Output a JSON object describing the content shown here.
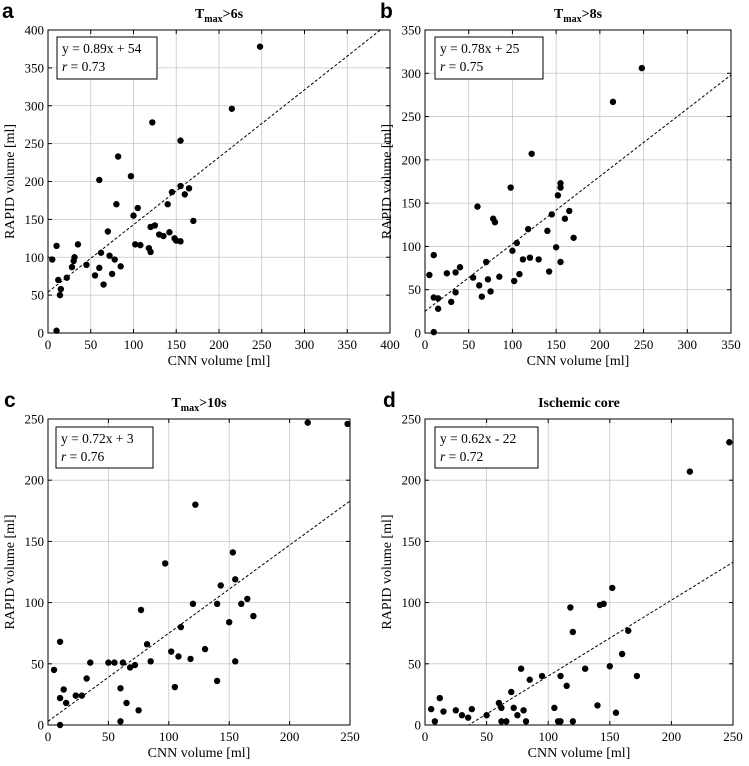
{
  "chart_data": [
    {
      "panel": "a",
      "type": "scatter",
      "title_main": "T",
      "title_sub": "max",
      "title_rest": ">6s",
      "xlabel": "CNN volume [ml]",
      "ylabel": "RAPID volume [ml]",
      "xlim": [
        0,
        400
      ],
      "ylim": [
        0,
        400
      ],
      "xticks": [
        0,
        50,
        100,
        150,
        200,
        250,
        300,
        350,
        400
      ],
      "yticks": [
        0,
        50,
        100,
        150,
        200,
        250,
        300,
        350,
        400
      ],
      "grid": true,
      "fit": {
        "slope": 0.89,
        "intercept": 54
      },
      "annotation": {
        "equation": "y = 0.89x + 54",
        "r_label": "r",
        "r_value": " = 0.73"
      },
      "points": [
        [
          5,
          97
        ],
        [
          10,
          115
        ],
        [
          10,
          3
        ],
        [
          12,
          70
        ],
        [
          14,
          50
        ],
        [
          15,
          58
        ],
        [
          22,
          73
        ],
        [
          28,
          87
        ],
        [
          30,
          95
        ],
        [
          31,
          100
        ],
        [
          35,
          117
        ],
        [
          45,
          90
        ],
        [
          55,
          76
        ],
        [
          60,
          86
        ],
        [
          60,
          202
        ],
        [
          62,
          106
        ],
        [
          65,
          64
        ],
        [
          70,
          134
        ],
        [
          72,
          102
        ],
        [
          75,
          78
        ],
        [
          78,
          97
        ],
        [
          80,
          170
        ],
        [
          82,
          233
        ],
        [
          85,
          88
        ],
        [
          97,
          207
        ],
        [
          100,
          155
        ],
        [
          102,
          117
        ],
        [
          105,
          165
        ],
        [
          108,
          116
        ],
        [
          118,
          112
        ],
        [
          120,
          107
        ],
        [
          120,
          140
        ],
        [
          122,
          278
        ],
        [
          125,
          142
        ],
        [
          130,
          130
        ],
        [
          135,
          128
        ],
        [
          140,
          170
        ],
        [
          142,
          133
        ],
        [
          145,
          186
        ],
        [
          148,
          125
        ],
        [
          150,
          122
        ],
        [
          155,
          194
        ],
        [
          155,
          121
        ],
        [
          155,
          254
        ],
        [
          160,
          183
        ],
        [
          165,
          191
        ],
        [
          170,
          148
        ],
        [
          215,
          296
        ],
        [
          248,
          378
        ]
      ]
    },
    {
      "panel": "b",
      "type": "scatter",
      "title_main": "T",
      "title_sub": "max",
      "title_rest": ">8s",
      "xlabel": "CNN volume [ml]",
      "ylabel": "RAPID volume [ml]",
      "xlim": [
        0,
        350
      ],
      "ylim": [
        0,
        350
      ],
      "xticks": [
        0,
        50,
        100,
        150,
        200,
        250,
        300,
        350
      ],
      "yticks": [
        0,
        50,
        100,
        150,
        200,
        250,
        300,
        350
      ],
      "grid": true,
      "fit": {
        "slope": 0.78,
        "intercept": 25
      },
      "annotation": {
        "equation": "y = 0.78x + 25",
        "r_label": "r",
        "r_value": " = 0.75"
      },
      "points": [
        [
          5,
          67
        ],
        [
          10,
          90
        ],
        [
          10,
          41
        ],
        [
          10,
          1
        ],
        [
          15,
          40
        ],
        [
          15,
          28
        ],
        [
          25,
          69
        ],
        [
          30,
          36
        ],
        [
          35,
          47
        ],
        [
          35,
          70
        ],
        [
          40,
          76
        ],
        [
          55,
          64
        ],
        [
          60,
          146
        ],
        [
          62,
          55
        ],
        [
          65,
          42
        ],
        [
          70,
          82
        ],
        [
          72,
          62
        ],
        [
          75,
          48
        ],
        [
          78,
          132
        ],
        [
          80,
          128
        ],
        [
          85,
          65
        ],
        [
          98,
          168
        ],
        [
          100,
          95
        ],
        [
          102,
          60
        ],
        [
          105,
          104
        ],
        [
          108,
          68
        ],
        [
          112,
          85
        ],
        [
          118,
          120
        ],
        [
          120,
          87
        ],
        [
          122,
          207
        ],
        [
          130,
          85
        ],
        [
          140,
          118
        ],
        [
          142,
          71
        ],
        [
          145,
          137
        ],
        [
          150,
          99
        ],
        [
          152,
          159
        ],
        [
          155,
          82
        ],
        [
          155,
          168
        ],
        [
          155,
          173
        ],
        [
          160,
          132
        ],
        [
          165,
          141
        ],
        [
          170,
          110
        ],
        [
          215,
          267
        ],
        [
          248,
          306
        ]
      ]
    },
    {
      "panel": "c",
      "type": "scatter",
      "title_main": "T",
      "title_sub": "max",
      "title_rest": ">10s",
      "xlabel": "CNN volume [ml]",
      "ylabel": "RAPID volume [ml]",
      "xlim": [
        0,
        250
      ],
      "ylim": [
        0,
        250
      ],
      "xticks": [
        0,
        50,
        100,
        150,
        200,
        250
      ],
      "yticks": [
        0,
        50,
        100,
        150,
        200,
        250
      ],
      "grid": true,
      "fit": {
        "slope": 0.72,
        "intercept": 3
      },
      "annotation": {
        "equation": "y = 0.72x + 3",
        "r_label": "r",
        "r_value": " = 0.76"
      },
      "points": [
        [
          5,
          45
        ],
        [
          10,
          68
        ],
        [
          10,
          22
        ],
        [
          10,
          0
        ],
        [
          13,
          29
        ],
        [
          15,
          18
        ],
        [
          23,
          24
        ],
        [
          28,
          24
        ],
        [
          32,
          38
        ],
        [
          35,
          51
        ],
        [
          50,
          51
        ],
        [
          55,
          51
        ],
        [
          60,
          30
        ],
        [
          60,
          3
        ],
        [
          62,
          51
        ],
        [
          65,
          18
        ],
        [
          68,
          47
        ],
        [
          72,
          49
        ],
        [
          75,
          12
        ],
        [
          77,
          94
        ],
        [
          82,
          66
        ],
        [
          85,
          52
        ],
        [
          97,
          132
        ],
        [
          102,
          60
        ],
        [
          105,
          31
        ],
        [
          108,
          56
        ],
        [
          110,
          80
        ],
        [
          118,
          54
        ],
        [
          120,
          99
        ],
        [
          122,
          180
        ],
        [
          130,
          62
        ],
        [
          140,
          36
        ],
        [
          140,
          99
        ],
        [
          143,
          114
        ],
        [
          150,
          84
        ],
        [
          153,
          141
        ],
        [
          155,
          119
        ],
        [
          155,
          52
        ],
        [
          160,
          99
        ],
        [
          165,
          103
        ],
        [
          170,
          89
        ],
        [
          215,
          247
        ],
        [
          248,
          246
        ]
      ]
    },
    {
      "panel": "d",
      "type": "scatter",
      "title_main": "Ischemic core",
      "title_sub": "",
      "title_rest": "",
      "xlabel": "CNN volume [ml]",
      "ylabel": "RAPID volume [ml]",
      "xlim": [
        0,
        250
      ],
      "ylim": [
        0,
        250
      ],
      "xticks": [
        0,
        50,
        100,
        150,
        200,
        250
      ],
      "yticks": [
        0,
        50,
        100,
        150,
        200,
        250
      ],
      "grid": true,
      "fit": {
        "slope": 0.62,
        "intercept": -22
      },
      "annotation": {
        "equation": "y = 0.62x - 22",
        "r_label": "r",
        "r_value": " = 0.72"
      },
      "points": [
        [
          5,
          13
        ],
        [
          8,
          3
        ],
        [
          12,
          22
        ],
        [
          15,
          11
        ],
        [
          25,
          12
        ],
        [
          30,
          8
        ],
        [
          35,
          6
        ],
        [
          38,
          13
        ],
        [
          50,
          8
        ],
        [
          60,
          18
        ],
        [
          62,
          14
        ],
        [
          62,
          3
        ],
        [
          66,
          3
        ],
        [
          70,
          27
        ],
        [
          72,
          14
        ],
        [
          75,
          8
        ],
        [
          78,
          46
        ],
        [
          80,
          12
        ],
        [
          82,
          3
        ],
        [
          85,
          37
        ],
        [
          95,
          40
        ],
        [
          105,
          14
        ],
        [
          108,
          3
        ],
        [
          110,
          3
        ],
        [
          110,
          40
        ],
        [
          115,
          32
        ],
        [
          118,
          96
        ],
        [
          120,
          3
        ],
        [
          120,
          76
        ],
        [
          130,
          46
        ],
        [
          140,
          16
        ],
        [
          142,
          98
        ],
        [
          145,
          99
        ],
        [
          150,
          48
        ],
        [
          152,
          112
        ],
        [
          155,
          10
        ],
        [
          160,
          58
        ],
        [
          165,
          77
        ],
        [
          172,
          40
        ],
        [
          215,
          207
        ],
        [
          247,
          231
        ]
      ]
    }
  ]
}
